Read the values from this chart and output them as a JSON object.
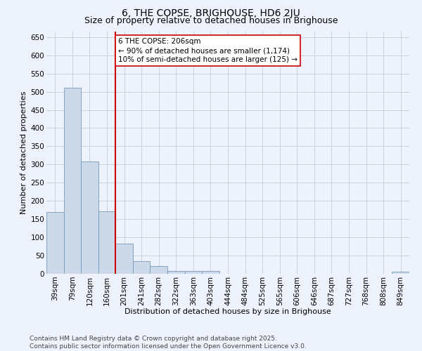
{
  "title": "6, THE COPSE, BRIGHOUSE, HD6 2JU",
  "subtitle": "Size of property relative to detached houses in Brighouse",
  "xlabel": "Distribution of detached houses by size in Brighouse",
  "ylabel": "Number of detached properties",
  "categories": [
    "39sqm",
    "79sqm",
    "120sqm",
    "160sqm",
    "201sqm",
    "241sqm",
    "282sqm",
    "322sqm",
    "363sqm",
    "403sqm",
    "444sqm",
    "484sqm",
    "525sqm",
    "565sqm",
    "606sqm",
    "646sqm",
    "687sqm",
    "727sqm",
    "768sqm",
    "808sqm",
    "849sqm"
  ],
  "values": [
    170,
    510,
    308,
    172,
    82,
    35,
    22,
    8,
    8,
    7,
    0,
    0,
    0,
    0,
    0,
    0,
    0,
    0,
    0,
    0,
    6
  ],
  "bar_color": "#ccd9e8",
  "bar_edge_color": "#7799bb",
  "vline_index": 4,
  "vline_color": "#cc0000",
  "annotation_text": "6 THE COPSE: 206sqm\n← 90% of detached houses are smaller (1,174)\n10% of semi-detached houses are larger (125) →",
  "annotation_box_facecolor": "white",
  "annotation_box_edgecolor": "#cc0000",
  "ylim": [
    0,
    665
  ],
  "yticks": [
    0,
    50,
    100,
    150,
    200,
    250,
    300,
    350,
    400,
    450,
    500,
    550,
    600,
    650
  ],
  "bg_color": "#eef2fc",
  "grid_color": "#c8cfe0",
  "footer": "Contains HM Land Registry data © Crown copyright and database right 2025.\nContains public sector information licensed under the Open Government Licence v3.0.",
  "title_fontsize": 10,
  "subtitle_fontsize": 9,
  "axis_label_fontsize": 8,
  "tick_fontsize": 7.5,
  "annotation_fontsize": 7.5,
  "footer_fontsize": 6.5
}
